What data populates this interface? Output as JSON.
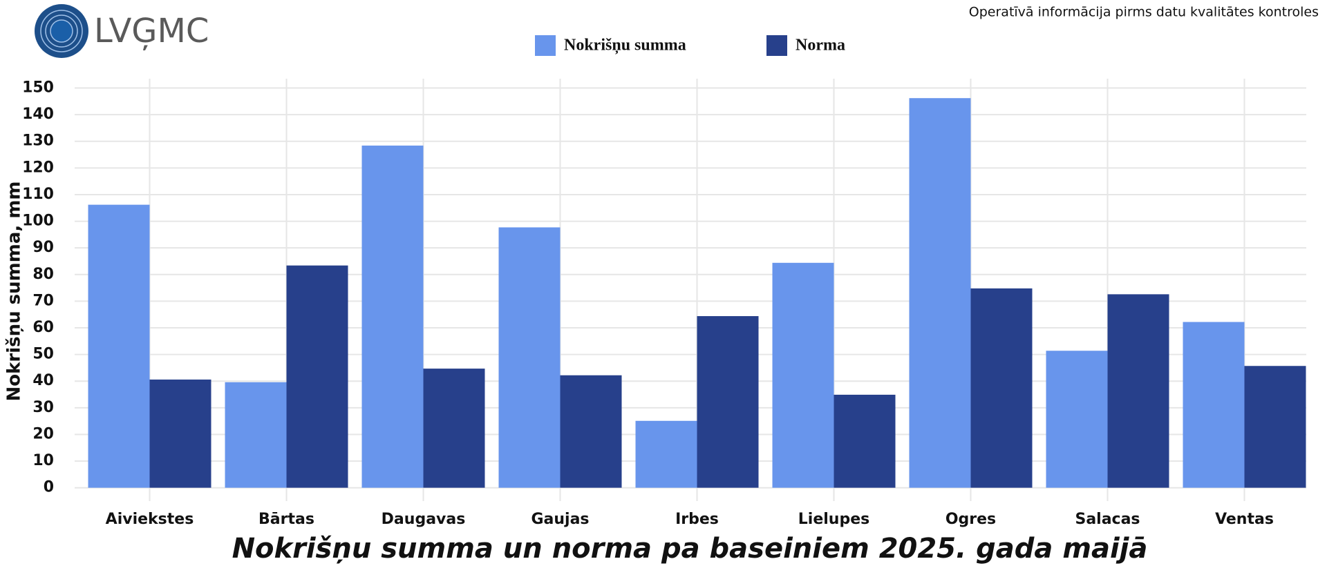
{
  "logo_text": "LVĢMC",
  "note": "Operatīvā informācija pirms datu kvalitātes kontroles",
  "chart_data": {
    "type": "bar",
    "title": "Nokrišņu summa un norma pa baseiniem 2025. gada maijā",
    "y_label": "Nokrišņu summa, mm",
    "categories": [
      "Aiviekstes",
      "Bārtas",
      "Daugavas",
      "Gaujas",
      "Irbes",
      "Lielupes",
      "Ogres",
      "Salacas",
      "Ventas"
    ],
    "series": [
      {
        "name": "Nokrišņu summa",
        "color": "#6895ec",
        "values": [
          106.2,
          39.6,
          128.4,
          97.7,
          25.1,
          84.4,
          146.2,
          51.4,
          62.2
        ]
      },
      {
        "name": "Norma",
        "color": "#27408b",
        "values": [
          40.6,
          83.4,
          44.7,
          42.2,
          64.4,
          34.9,
          74.8,
          72.6,
          45.7
        ]
      }
    ],
    "ylim": [
      -5,
      153.5
    ],
    "yticks": [
      0,
      10,
      20,
      30,
      40,
      50,
      60,
      70,
      80,
      90,
      100,
      110,
      120,
      130,
      140,
      150
    ],
    "grid": true
  }
}
